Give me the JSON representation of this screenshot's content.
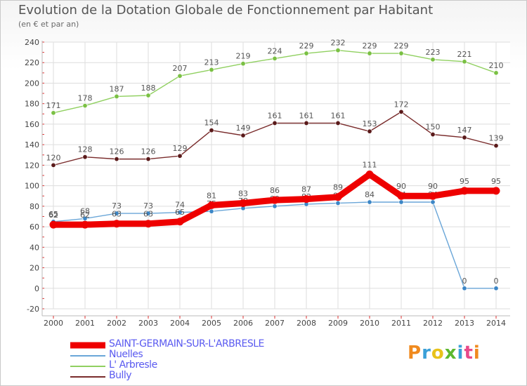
{
  "chart_data": {
    "type": "line",
    "title": "Evolution de la Dotation Globale de Fonctionnement par Habitant",
    "subtitle": "(en € et par an)",
    "x": [
      "2000",
      "2001",
      "2002",
      "2003",
      "2004",
      "2005",
      "2006",
      "2007",
      "2008",
      "2009",
      "2010",
      "2011",
      "2012",
      "2013",
      "2014"
    ],
    "ylim": [
      -20,
      240
    ],
    "yticks": [
      -20,
      0,
      20,
      40,
      60,
      80,
      100,
      120,
      140,
      160,
      180,
      200,
      220,
      240
    ],
    "grid": true,
    "series": [
      {
        "name": "L' Arbresle",
        "color": "#90d060",
        "marker": "#7ac043",
        "values": [
          171,
          178,
          187,
          188,
          207,
          213,
          219,
          224,
          229,
          232,
          229,
          229,
          223,
          221,
          210
        ]
      },
      {
        "name": "Bully",
        "color": "#7a2c2c",
        "marker": "#5a1a1a",
        "values": [
          120,
          128,
          126,
          126,
          129,
          154,
          149,
          161,
          161,
          161,
          153,
          172,
          150,
          147,
          139
        ]
      },
      {
        "name": "Nuelles",
        "color": "#6aa6d8",
        "marker": "#3c86c6",
        "values": [
          65,
          68,
          73,
          73,
          74,
          75,
          78,
          80,
          82,
          83,
          84,
          84,
          84,
          0,
          0
        ]
      },
      {
        "name": "SAINT-GERMAIN-SUR-L'ARBRESLE",
        "color": "#ee0000",
        "marker": "#ee0000",
        "values": [
          62,
          62,
          63,
          63,
          65,
          81,
          83,
          86,
          87,
          89,
          111,
          90,
          90,
          95,
          95
        ]
      }
    ],
    "legend": [
      {
        "name": "SAINT-GERMAIN-SUR-L'ARBRESLE",
        "color": "#ee0000",
        "thick": true
      },
      {
        "name": "Nuelles",
        "color": "#6aa6d8",
        "thick": false
      },
      {
        "name": "L' Arbresle",
        "color": "#90d060",
        "thick": false
      },
      {
        "name": "Bully",
        "color": "#7a2c2c",
        "thick": false
      }
    ]
  },
  "brand": {
    "text": "Proxiti",
    "colors": [
      "#f08a1e",
      "#3aa0d8",
      "#e8c21a",
      "#5cb82e",
      "#3aa0d8",
      "#e84a8a",
      "#f08a1e"
    ]
  }
}
